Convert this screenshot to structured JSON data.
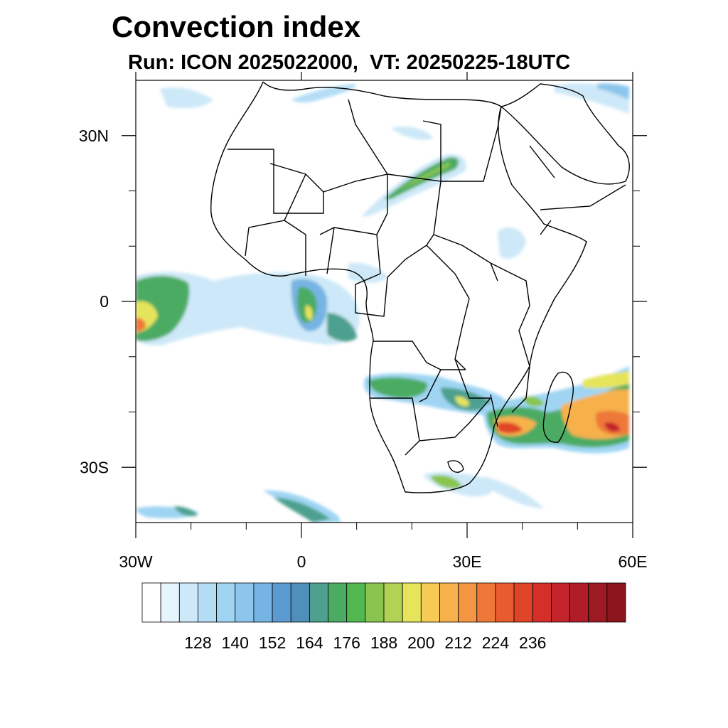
{
  "title": "Convection index",
  "subtitle": "Run: ICON 2025022000,  VT: 20250225-18UTC",
  "map": {
    "lon_range": [
      -30,
      60
    ],
    "lat_range": [
      -40,
      40
    ],
    "lon_ticks": [
      {
        "value": -30,
        "label": "30W"
      },
      {
        "value": 0,
        "label": "0"
      },
      {
        "value": 30,
        "label": "30E"
      },
      {
        "value": 60,
        "label": "60E"
      }
    ],
    "lat_ticks": [
      {
        "value": 30,
        "label": "30N"
      },
      {
        "value": 0,
        "label": "0"
      },
      {
        "value": -30,
        "label": "30S"
      }
    ],
    "minor_lon_ticks": [
      -20,
      -10,
      10,
      20,
      40,
      50
    ],
    "minor_lat_ticks": [
      20,
      10,
      -10,
      -20
    ]
  },
  "colorbar": {
    "labels": [
      "128",
      "140",
      "152",
      "164",
      "176",
      "188",
      "200",
      "212",
      "224",
      "236"
    ],
    "colors": [
      "#ffffff",
      "#e6f4fd",
      "#cde8f8",
      "#b4ddf5",
      "#9fd5f3",
      "#8cc6ec",
      "#76b4e3",
      "#5b9bd2",
      "#4f8fb8",
      "#4ea08f",
      "#4cab63",
      "#50b84e",
      "#89c54e",
      "#b1d254",
      "#e6e45a",
      "#f5cb55",
      "#f6b14c",
      "#f39541",
      "#ee7838",
      "#e85b2e",
      "#e04428",
      "#d42f2a",
      "#c3232b",
      "#b01d28",
      "#9d1a22",
      "#8a151c"
    ]
  }
}
